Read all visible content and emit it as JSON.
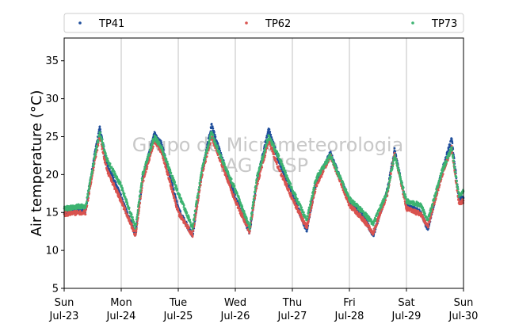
{
  "chart_data": {
    "type": "scatter",
    "title": "",
    "xlabel": "",
    "ylabel": "Air temperature (°C)",
    "ylim": [
      5,
      38
    ],
    "yticks": [
      5,
      10,
      15,
      20,
      25,
      30,
      35
    ],
    "xlim": [
      "2023-07-23",
      "2023-07-30"
    ],
    "xtick_labels": [
      [
        "Sun",
        "Jul-23"
      ],
      [
        "Mon",
        "Jul-24"
      ],
      [
        "Tue",
        "Jul-25"
      ],
      [
        "Wed",
        "Jul-26"
      ],
      [
        "Thu",
        "Jul-27"
      ],
      [
        "Fri",
        "Jul-28"
      ],
      [
        "Sat",
        "Jul-29"
      ],
      [
        "Sun",
        "Jul-30"
      ]
    ],
    "grid": "vertical",
    "legend_position": "top",
    "watermark": [
      "Grupo de Micrometeorologia",
      "IAG / USP"
    ],
    "series": [
      {
        "name": "TP41",
        "color": "#1f4e9c",
        "points": [
          [
            "Jul-23 00:00",
            15.0
          ],
          [
            "Jul-23 06:00",
            15.3
          ],
          [
            "Jul-23 09:00",
            15.2
          ],
          [
            "Jul-23 13:00",
            23.0
          ],
          [
            "Jul-23 15:00",
            26.2
          ],
          [
            "Jul-23 18:00",
            21.5
          ],
          [
            "Jul-24 00:00",
            17.0
          ],
          [
            "Jul-24 06:00",
            12.0
          ],
          [
            "Jul-24 09:00",
            19.5
          ],
          [
            "Jul-24 14:00",
            25.5
          ],
          [
            "Jul-24 17:00",
            24.0
          ],
          [
            "Jul-25 00:00",
            15.5
          ],
          [
            "Jul-25 06:00",
            11.9
          ],
          [
            "Jul-25 10:00",
            20.5
          ],
          [
            "Jul-25 14:00",
            26.5
          ],
          [
            "Jul-25 17:00",
            23.5
          ],
          [
            "Jul-26 00:00",
            17.0
          ],
          [
            "Jul-26 06:00",
            12.3
          ],
          [
            "Jul-26 09:00",
            19.0
          ],
          [
            "Jul-26 14:00",
            26.0
          ],
          [
            "Jul-26 18:00",
            22.0
          ],
          [
            "Jul-27 00:00",
            17.5
          ],
          [
            "Jul-27 06:00",
            12.6
          ],
          [
            "Jul-27 10:00",
            19.0
          ],
          [
            "Jul-27 16:00",
            22.8
          ],
          [
            "Jul-28 00:00",
            16.5
          ],
          [
            "Jul-28 06:00",
            14.5
          ],
          [
            "Jul-28 10:00",
            12.0
          ],
          [
            "Jul-28 16:00",
            18.0
          ],
          [
            "Jul-28 19:00",
            23.2
          ],
          [
            "Jul-29 00:00",
            16.0
          ],
          [
            "Jul-29 06:00",
            15.0
          ],
          [
            "Jul-29 09:00",
            12.8
          ],
          [
            "Jul-29 15:00",
            20.5
          ],
          [
            "Jul-29 19:00",
            24.7
          ],
          [
            "Jul-29 22:00",
            17.0
          ],
          [
            "Jul-30 00:00",
            16.8
          ]
        ]
      },
      {
        "name": "TP62",
        "color": "#d9534f",
        "points": [
          [
            "Jul-23 00:00",
            14.8
          ],
          [
            "Jul-23 06:00",
            15.0
          ],
          [
            "Jul-23 09:00",
            15.0
          ],
          [
            "Jul-23 13:00",
            22.0
          ],
          [
            "Jul-23 15:00",
            25.0
          ],
          [
            "Jul-23 18:00",
            20.5
          ],
          [
            "Jul-24 00:00",
            16.5
          ],
          [
            "Jul-24 06:00",
            12.0
          ],
          [
            "Jul-24 09:00",
            19.0
          ],
          [
            "Jul-24 14:00",
            24.5
          ],
          [
            "Jul-24 17:00",
            23.0
          ],
          [
            "Jul-25 00:00",
            15.0
          ],
          [
            "Jul-25 06:00",
            12.0
          ],
          [
            "Jul-25 10:00",
            20.0
          ],
          [
            "Jul-25 14:00",
            25.0
          ],
          [
            "Jul-25 17:00",
            22.5
          ],
          [
            "Jul-26 00:00",
            16.5
          ],
          [
            "Jul-26 06:00",
            12.5
          ],
          [
            "Jul-26 09:00",
            18.5
          ],
          [
            "Jul-26 14:00",
            24.5
          ],
          [
            "Jul-26 18:00",
            21.0
          ],
          [
            "Jul-27 00:00",
            16.8
          ],
          [
            "Jul-27 06:00",
            13.0
          ],
          [
            "Jul-27 10:00",
            18.5
          ],
          [
            "Jul-27 16:00",
            22.5
          ],
          [
            "Jul-28 00:00",
            16.0
          ],
          [
            "Jul-28 06:00",
            14.0
          ],
          [
            "Jul-28 10:00",
            12.3
          ],
          [
            "Jul-28 16:00",
            17.5
          ],
          [
            "Jul-28 19:00",
            22.8
          ],
          [
            "Jul-29 00:00",
            15.5
          ],
          [
            "Jul-29 06:00",
            14.8
          ],
          [
            "Jul-29 09:00",
            13.2
          ],
          [
            "Jul-29 15:00",
            20.0
          ],
          [
            "Jul-29 19:00",
            23.5
          ],
          [
            "Jul-29 22:00",
            16.3
          ],
          [
            "Jul-30 00:00",
            16.5
          ]
        ]
      },
      {
        "name": "TP73",
        "color": "#3cb371",
        "points": [
          [
            "Jul-23 00:00",
            15.5
          ],
          [
            "Jul-23 06:00",
            15.8
          ],
          [
            "Jul-23 09:00",
            15.8
          ],
          [
            "Jul-23 13:00",
            22.5
          ],
          [
            "Jul-23 15:00",
            25.5
          ],
          [
            "Jul-23 18:00",
            22.0
          ],
          [
            "Jul-24 00:00",
            18.5
          ],
          [
            "Jul-24 06:00",
            13.0
          ],
          [
            "Jul-24 09:00",
            20.0
          ],
          [
            "Jul-24 14:00",
            25.0
          ],
          [
            "Jul-24 17:00",
            23.5
          ],
          [
            "Jul-25 00:00",
            17.5
          ],
          [
            "Jul-25 06:00",
            13.0
          ],
          [
            "Jul-25 10:00",
            20.8
          ],
          [
            "Jul-25 14:00",
            25.5
          ],
          [
            "Jul-25 17:00",
            23.0
          ],
          [
            "Jul-26 00:00",
            18.0
          ],
          [
            "Jul-26 06:00",
            13.0
          ],
          [
            "Jul-26 09:00",
            19.5
          ],
          [
            "Jul-26 14:00",
            25.0
          ],
          [
            "Jul-26 18:00",
            22.5
          ],
          [
            "Jul-27 00:00",
            18.0
          ],
          [
            "Jul-27 06:00",
            14.0
          ],
          [
            "Jul-27 10:00",
            19.5
          ],
          [
            "Jul-27 16:00",
            22.5
          ],
          [
            "Jul-28 00:00",
            16.8
          ],
          [
            "Jul-28 06:00",
            15.0
          ],
          [
            "Jul-28 10:00",
            13.5
          ],
          [
            "Jul-28 16:00",
            17.8
          ],
          [
            "Jul-28 19:00",
            22.5
          ],
          [
            "Jul-29 00:00",
            16.5
          ],
          [
            "Jul-29 06:00",
            16.0
          ],
          [
            "Jul-29 09:00",
            14.0
          ],
          [
            "Jul-29 15:00",
            20.5
          ],
          [
            "Jul-29 19:00",
            23.5
          ],
          [
            "Jul-29 22:00",
            17.3
          ],
          [
            "Jul-30 00:00",
            17.8
          ]
        ]
      }
    ]
  }
}
